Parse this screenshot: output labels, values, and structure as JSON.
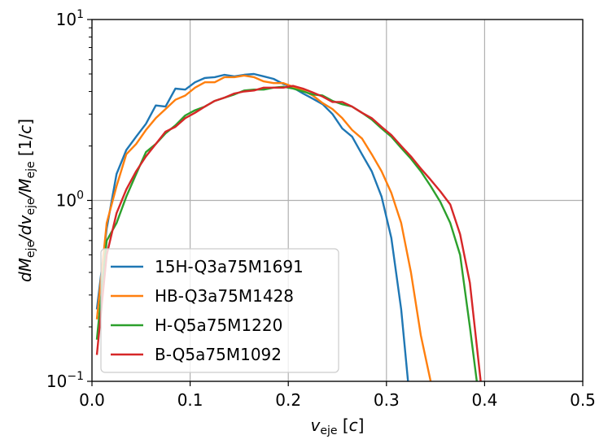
{
  "chart_data": {
    "type": "line",
    "xscale": "linear",
    "yscale": "log",
    "xlim": [
      0.0,
      0.5
    ],
    "ylim": [
      0.1,
      10
    ],
    "grid": true,
    "legend_position": "lower-left",
    "xlabel": {
      "main": "v",
      "sub": "eje",
      "unit": "[c]"
    },
    "ylabel": {
      "parts": [
        {
          "t": "dM",
          "style": "italic"
        },
        {
          "t": "eje",
          "style": "sub"
        },
        {
          "t": "/dv",
          "style": "italic"
        },
        {
          "t": "eje",
          "style": "sub"
        },
        {
          "t": "/M",
          "style": "italic"
        },
        {
          "t": "eje",
          "style": "sub"
        },
        {
          "t": " [1/",
          "style": "normal"
        },
        {
          "t": "c",
          "style": "italic"
        },
        {
          "t": "]",
          "style": "normal"
        }
      ]
    },
    "xticks": [
      0.0,
      0.1,
      0.2,
      0.3,
      0.4,
      0.5
    ],
    "xtick_labels": [
      "0.0",
      "0.1",
      "0.2",
      "0.3",
      "0.4",
      "0.5"
    ],
    "yticks": [
      {
        "value": 0.1,
        "base": "10",
        "exp": "−1"
      },
      {
        "value": 1,
        "base": "10",
        "exp": "0"
      },
      {
        "value": 10,
        "base": "10",
        "exp": "1"
      }
    ],
    "series": [
      {
        "name": "15H-Q3a75M1691",
        "color": "#1f77b4",
        "x": [
          0.005,
          0.015,
          0.025,
          0.035,
          0.045,
          0.055,
          0.065,
          0.075,
          0.085,
          0.095,
          0.105,
          0.115,
          0.125,
          0.135,
          0.145,
          0.155,
          0.165,
          0.175,
          0.185,
          0.195,
          0.205,
          0.215,
          0.225,
          0.235,
          0.245,
          0.255,
          0.265,
          0.275,
          0.285,
          0.295,
          0.305,
          0.315,
          0.322
        ],
        "y": [
          0.25,
          0.7,
          1.4,
          1.9,
          2.25,
          2.65,
          3.35,
          3.3,
          4.15,
          4.1,
          4.5,
          4.75,
          4.8,
          4.95,
          4.85,
          4.95,
          5.0,
          4.85,
          4.7,
          4.4,
          4.2,
          3.9,
          3.65,
          3.4,
          3.0,
          2.5,
          2.25,
          1.8,
          1.45,
          1.05,
          0.62,
          0.25,
          0.1
        ]
      },
      {
        "name": "HB-Q3a75M1428",
        "color": "#ff7f0e",
        "x": [
          0.005,
          0.015,
          0.025,
          0.035,
          0.045,
          0.055,
          0.065,
          0.075,
          0.085,
          0.095,
          0.105,
          0.115,
          0.125,
          0.135,
          0.145,
          0.155,
          0.165,
          0.175,
          0.185,
          0.195,
          0.205,
          0.215,
          0.225,
          0.235,
          0.245,
          0.255,
          0.265,
          0.275,
          0.285,
          0.295,
          0.305,
          0.315,
          0.325,
          0.335,
          0.345
        ],
        "y": [
          0.22,
          0.75,
          1.2,
          1.8,
          2.05,
          2.45,
          2.85,
          3.2,
          3.6,
          3.8,
          4.2,
          4.5,
          4.5,
          4.8,
          4.8,
          4.9,
          4.8,
          4.55,
          4.45,
          4.45,
          4.25,
          4.05,
          3.8,
          3.45,
          3.2,
          2.85,
          2.45,
          2.2,
          1.8,
          1.45,
          1.1,
          0.75,
          0.4,
          0.18,
          0.1
        ]
      },
      {
        "name": "H-Q5a75M1220",
        "color": "#2ca02c",
        "x": [
          0.005,
          0.015,
          0.025,
          0.035,
          0.045,
          0.055,
          0.065,
          0.075,
          0.085,
          0.095,
          0.105,
          0.115,
          0.125,
          0.135,
          0.145,
          0.155,
          0.165,
          0.175,
          0.185,
          0.195,
          0.205,
          0.215,
          0.225,
          0.235,
          0.245,
          0.255,
          0.265,
          0.275,
          0.285,
          0.295,
          0.305,
          0.315,
          0.325,
          0.335,
          0.345,
          0.355,
          0.365,
          0.375,
          0.385,
          0.392
        ],
        "y": [
          0.17,
          0.6,
          0.75,
          1.05,
          1.4,
          1.85,
          2.05,
          2.35,
          2.6,
          2.95,
          3.15,
          3.3,
          3.55,
          3.7,
          3.85,
          4.05,
          4.1,
          4.1,
          4.2,
          4.25,
          4.15,
          4.0,
          3.85,
          3.8,
          3.55,
          3.4,
          3.3,
          3.05,
          2.8,
          2.5,
          2.25,
          1.95,
          1.7,
          1.45,
          1.2,
          0.98,
          0.75,
          0.5,
          0.2,
          0.1
        ]
      },
      {
        "name": "B-Q5a75M1092",
        "color": "#d62728",
        "x": [
          0.005,
          0.015,
          0.025,
          0.035,
          0.045,
          0.055,
          0.065,
          0.075,
          0.085,
          0.095,
          0.105,
          0.115,
          0.125,
          0.135,
          0.145,
          0.155,
          0.165,
          0.175,
          0.185,
          0.195,
          0.205,
          0.215,
          0.225,
          0.235,
          0.245,
          0.255,
          0.265,
          0.275,
          0.285,
          0.295,
          0.305,
          0.315,
          0.325,
          0.335,
          0.345,
          0.355,
          0.365,
          0.375,
          0.385,
          0.396
        ],
        "y": [
          0.14,
          0.5,
          0.85,
          1.15,
          1.45,
          1.75,
          2.05,
          2.4,
          2.55,
          2.85,
          3.05,
          3.3,
          3.55,
          3.7,
          3.9,
          4.0,
          4.05,
          4.2,
          4.2,
          4.2,
          4.3,
          4.15,
          3.95,
          3.75,
          3.5,
          3.5,
          3.3,
          3.05,
          2.85,
          2.55,
          2.3,
          2.0,
          1.75,
          1.5,
          1.3,
          1.12,
          0.95,
          0.65,
          0.35,
          0.1
        ]
      }
    ]
  }
}
